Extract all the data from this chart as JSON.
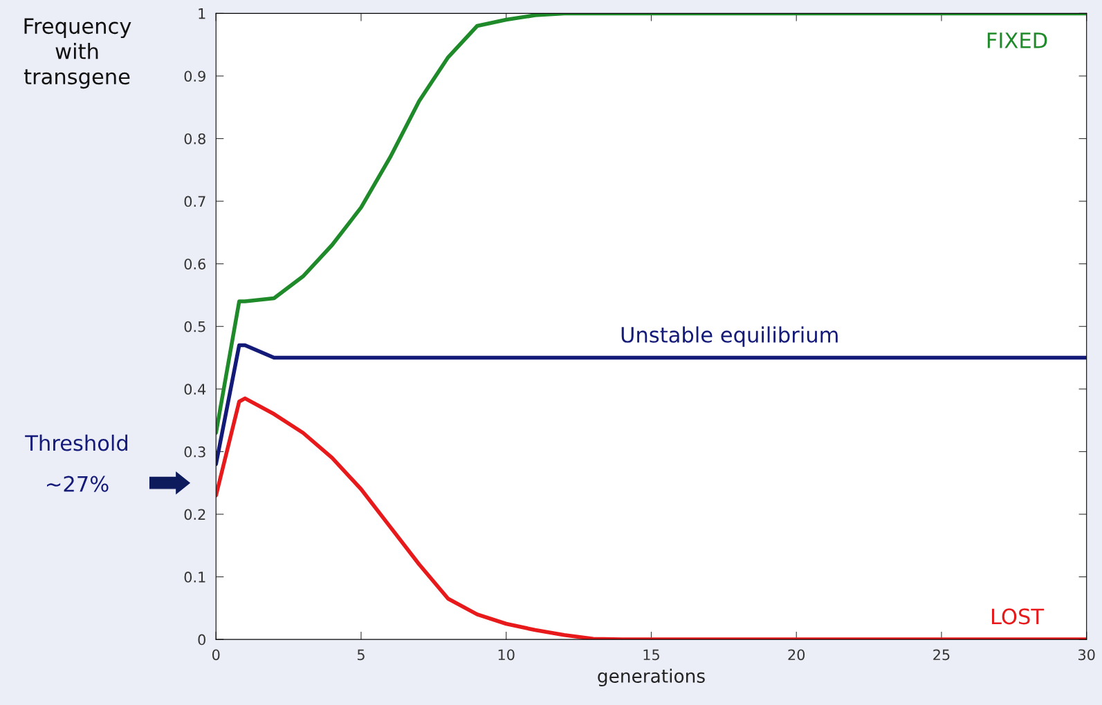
{
  "chart_data": {
    "type": "line",
    "xlabel": "generations",
    "ylabel": "Frequency\nwith\ntransgene",
    "xlim": [
      0,
      30
    ],
    "ylim": [
      0,
      1
    ],
    "xticks": [
      0,
      5,
      10,
      15,
      20,
      25,
      30
    ],
    "yticks": [
      0,
      0.1,
      0.2,
      0.3,
      0.4,
      0.5,
      0.6,
      0.7,
      0.8,
      0.9,
      1
    ],
    "grid": false,
    "marker": "none",
    "line_style": "solid",
    "series": [
      {
        "name": "FIXED",
        "color": "#1f8a2a",
        "x": [
          0,
          0.8,
          1,
          2,
          3,
          4,
          5,
          6,
          7,
          8,
          9,
          10,
          11,
          12,
          30
        ],
        "values": [
          0.33,
          0.54,
          0.54,
          0.545,
          0.58,
          0.63,
          0.69,
          0.77,
          0.86,
          0.93,
          0.98,
          0.99,
          0.997,
          1,
          1
        ]
      },
      {
        "name": "Unstable equilibrium",
        "color": "#141a78",
        "x": [
          0,
          0.8,
          1,
          2,
          30
        ],
        "values": [
          0.28,
          0.47,
          0.47,
          0.45,
          0.45
        ]
      },
      {
        "name": "LOST",
        "color": "#e8191b",
        "x": [
          0,
          0.8,
          1,
          2,
          3,
          4,
          5,
          6,
          7,
          8,
          9,
          10,
          11,
          12,
          13,
          14,
          30
        ],
        "values": [
          0.23,
          0.38,
          0.385,
          0.36,
          0.33,
          0.29,
          0.24,
          0.18,
          0.12,
          0.065,
          0.04,
          0.025,
          0.015,
          0.007,
          0.001,
          0,
          0
        ]
      }
    ],
    "annotations": [
      "Threshold\n\n~27%"
    ]
  }
}
